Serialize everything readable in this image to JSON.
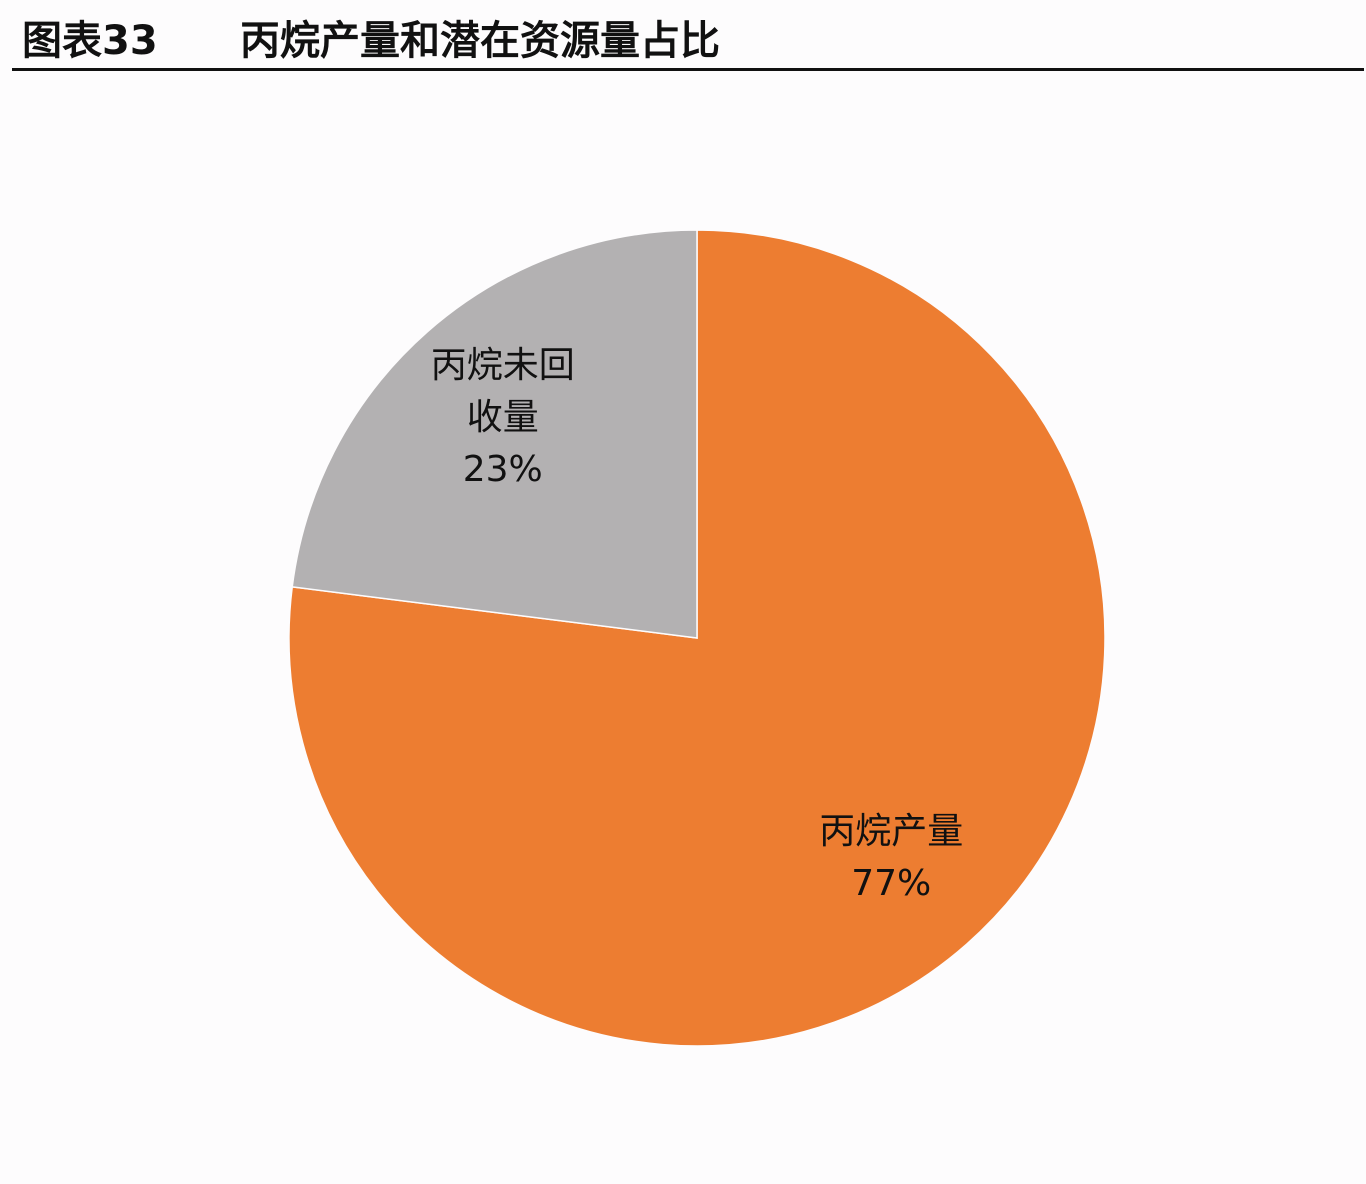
{
  "chart_data": {
    "type": "pie",
    "figure_label": "图表33",
    "title": "丙烷产量和潜在资源量占比",
    "categories": [
      "丙烷产量",
      "丙烷未回收量"
    ],
    "values": [
      77,
      23
    ],
    "value_labels": [
      "77%",
      "23%"
    ],
    "colors": [
      "#ed7d31",
      "#b3b1b2"
    ]
  }
}
